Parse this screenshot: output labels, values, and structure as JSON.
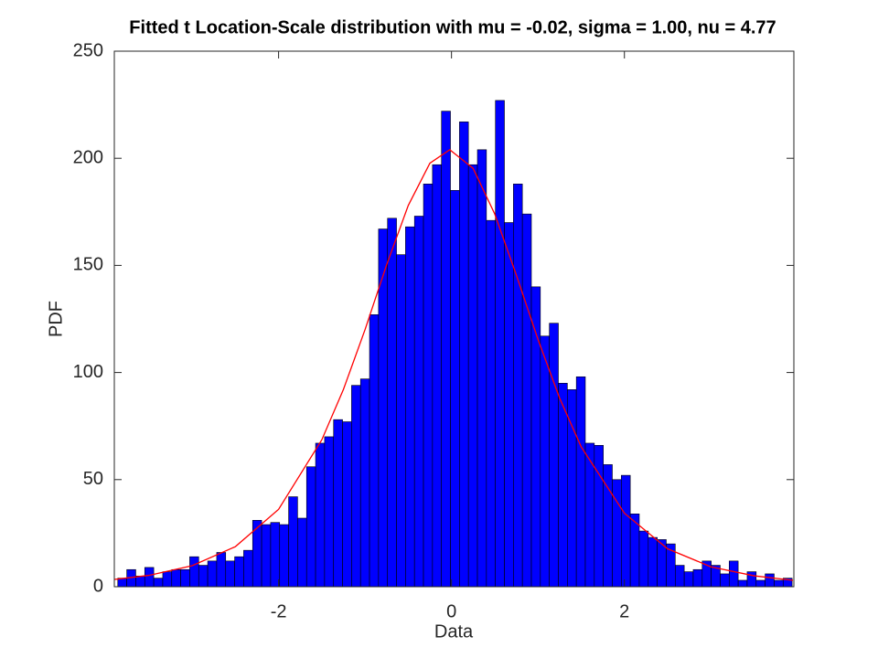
{
  "chart_data": {
    "type": "histogram",
    "title": "Fitted t Location-Scale distribution with mu = -0.02, sigma = 1.00, nu = 4.77",
    "xlabel": "Data",
    "ylabel": "PDF",
    "bins": [
      -3.86,
      -3.756,
      -3.652,
      -3.548,
      -3.444,
      -3.34,
      -3.236,
      -3.132,
      -3.028,
      -2.924,
      -2.82,
      -2.716,
      -2.612,
      -2.508,
      -2.404,
      -2.3,
      -2.196,
      -2.092,
      -1.988,
      -1.884,
      -1.78,
      -1.676,
      -1.572,
      -1.468,
      -1.364,
      -1.26,
      -1.156,
      -1.052,
      -0.948,
      -0.844,
      -0.74,
      -0.636,
      -0.532,
      -0.428,
      -0.324,
      -0.22,
      -0.116,
      -0.012,
      0.092,
      0.196,
      0.3,
      0.404,
      0.508,
      0.612,
      0.716,
      0.82,
      0.924,
      1.028,
      1.132,
      1.236,
      1.34,
      1.444,
      1.548,
      1.652,
      1.756,
      1.86,
      1.964,
      2.068,
      2.172,
      2.276,
      2.38,
      2.484,
      2.588,
      2.692,
      2.796,
      2.9,
      3.004,
      3.108,
      3.212,
      3.316,
      3.42,
      3.524,
      3.628,
      3.732,
      3.836,
      3.94
    ],
    "values": [
      4,
      8,
      5,
      9,
      4,
      7,
      8,
      8,
      14,
      10,
      12,
      16,
      12,
      14,
      17,
      31,
      29,
      30,
      29,
      42,
      32,
      56,
      67,
      70,
      78,
      77,
      94,
      97,
      127,
      167,
      172,
      155,
      168,
      173,
      188,
      197,
      222,
      185,
      217,
      197,
      204,
      171,
      227,
      170,
      188,
      174,
      140,
      117,
      123,
      95,
      92,
      98,
      67,
      66,
      57,
      50,
      52,
      34,
      26,
      23,
      22,
      20,
      10,
      7,
      8,
      12,
      10,
      6,
      12,
      3,
      7,
      3,
      6,
      3,
      4
    ],
    "color": "#0000ff",
    "fit": {
      "type": "line",
      "color": "#ff0000",
      "x": [
        -3.9,
        -3.5,
        -3,
        -2.5,
        -2,
        -1.5,
        -1.25,
        -1,
        -0.75,
        -0.5,
        -0.25,
        -0.02,
        0.25,
        0.5,
        0.75,
        1,
        1.25,
        1.5,
        2,
        2.5,
        3,
        3.5,
        3.95
      ],
      "values": [
        3.4,
        5.3,
        9.8,
        18.7,
        36.1,
        68.6,
        92.1,
        120,
        150.3,
        178,
        197.7,
        204,
        195.3,
        174,
        145.5,
        115.5,
        88.1,
        65.3,
        34.3,
        17.7,
        9.3,
        5.1,
        3.0
      ]
    },
    "xlim": [
      -3.9,
      3.96
    ],
    "ylim": [
      0,
      250
    ],
    "xticks": [
      -2,
      0,
      2
    ],
    "yticks": [
      0,
      50,
      100,
      150,
      200,
      250
    ]
  }
}
